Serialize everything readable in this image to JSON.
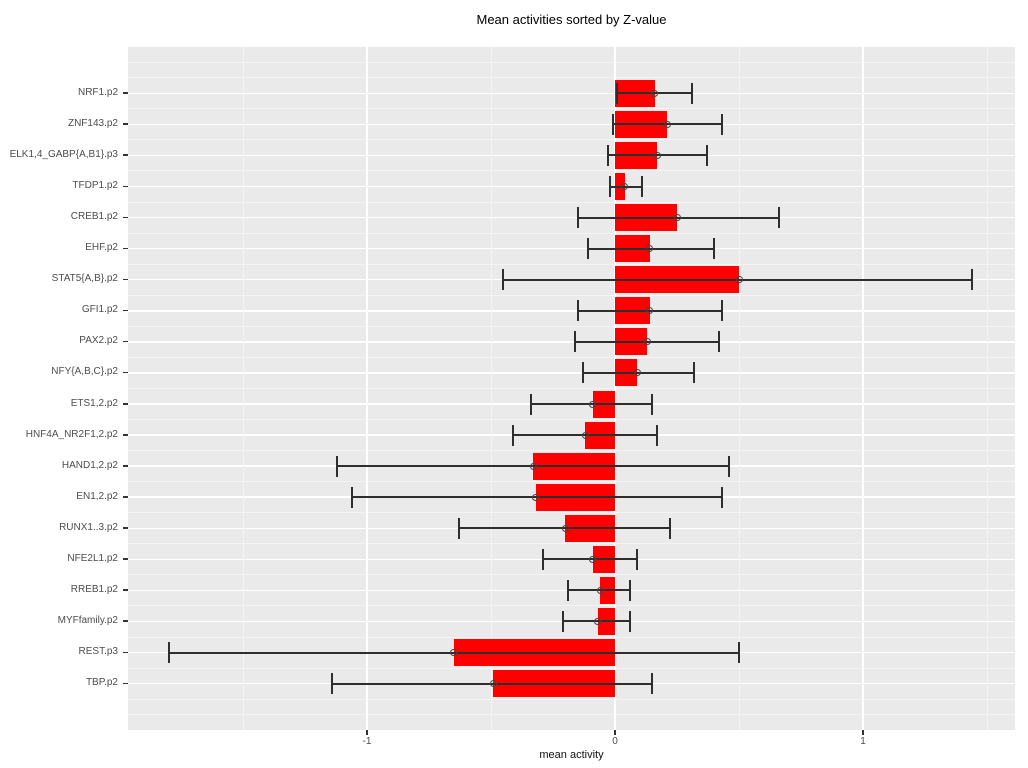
{
  "colors": {
    "bar": "#FF0000",
    "error_bar": "#2E2E2E",
    "point_ring": "#444444",
    "panel_background": "#EAEAEA",
    "grid_major": "#FFFFFF",
    "grid_minor": "#F4F4F4",
    "axis_tick": "#333333",
    "axis_text": "#4D4D4D",
    "title_text": "#000000"
  },
  "chart_data": {
    "type": "bar",
    "orientation": "horizontal",
    "title": "Mean activities sorted by Z-value",
    "xlabel": "mean activity",
    "ylabel": "",
    "xlim": [
      -1.96,
      1.61
    ],
    "grid": true,
    "legend": null,
    "x_ticks": {
      "values": [
        -1,
        0,
        1
      ],
      "labels": [
        "-1",
        "0",
        "1"
      ]
    },
    "x_minor_gridlines": [
      -1.5,
      -0.5,
      0.5,
      1.5
    ],
    "categories": [
      "NRF1.p2",
      "ZNF143.p2",
      "ELK1,4_GABP{A,B1}.p3",
      "TFDP1.p2",
      "CREB1.p2",
      "EHF.p2",
      "STAT5{A,B}.p2",
      "GFI1.p2",
      "PAX2.p2",
      "NFY{A,B,C}.p2",
      "ETS1,2.p2",
      "HNF4A_NR2F1,2.p2",
      "HAND1,2.p2",
      "EN1,2.p2",
      "RUNX1..3.p2",
      "NFE2L1.p2",
      "RREB1.p2",
      "MYFfamily.p2",
      "REST.p3",
      "TBP.p2"
    ],
    "series": [
      {
        "name": "mean activity",
        "values": [
          0.16,
          0.21,
          0.17,
          0.04,
          0.25,
          0.14,
          0.5,
          0.14,
          0.13,
          0.09,
          -0.09,
          -0.12,
          -0.33,
          -0.32,
          -0.2,
          -0.09,
          -0.06,
          -0.07,
          -0.65,
          -0.49
        ]
      }
    ],
    "error_low": [
      0.01,
      -0.01,
      -0.03,
      -0.02,
      -0.15,
      -0.11,
      -0.45,
      -0.15,
      -0.16,
      -0.13,
      -0.34,
      -0.41,
      -1.12,
      -1.06,
      -0.63,
      -0.29,
      -0.19,
      -0.21,
      -1.8,
      -1.14
    ],
    "error_high": [
      0.31,
      0.43,
      0.37,
      0.11,
      0.66,
      0.4,
      1.44,
      0.43,
      0.42,
      0.32,
      0.15,
      0.17,
      0.46,
      0.43,
      0.22,
      0.09,
      0.06,
      0.06,
      0.5,
      0.15
    ]
  }
}
